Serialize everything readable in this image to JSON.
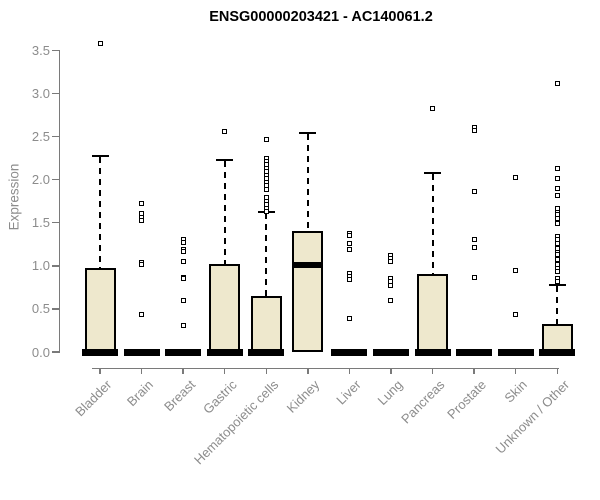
{
  "chart_data": {
    "type": "boxplot",
    "title": "ENSG00000203421 - AC140061.2",
    "ylabel": "Expression",
    "xlabel": "",
    "ylim": [
      0,
      3.5
    ],
    "yticks": [
      "0.0",
      "0.5",
      "1.0",
      "1.5",
      "2.0",
      "2.5",
      "3.0",
      "3.5"
    ],
    "grid": false,
    "legend": "none",
    "box_fill_color": "#EEE8CD",
    "axis_color": "#7a7a7a",
    "label_color": "#8c8c8c",
    "categories": [
      "Bladder",
      "Brain",
      "Breast",
      "Gastric",
      "Hematopoietic cells",
      "Kidney",
      "Liver",
      "Lung",
      "Pancreas",
      "Prostate",
      "Skin",
      "Unknown / Other"
    ],
    "boxes": [
      {
        "category": "Bladder",
        "q1": 0,
        "median": 0,
        "q3": 0.98,
        "whisker_low": 0,
        "whisker_high": 2.27,
        "outliers": [
          3.58
        ]
      },
      {
        "category": "Brain",
        "q1": 0,
        "median": 0,
        "q3": 0,
        "whisker_low": 0,
        "whisker_high": 0,
        "outliers": [
          1.72,
          1.61,
          1.56,
          1.53,
          1.04,
          1.02,
          0.43
        ]
      },
      {
        "category": "Breast",
        "q1": 0,
        "median": 0,
        "q3": 0,
        "whisker_low": 0,
        "whisker_high": 0,
        "outliers": [
          1.31,
          1.27,
          1.19,
          1.17,
          1.05,
          0.87,
          0.85,
          0.6,
          0.31
        ]
      },
      {
        "category": "Gastric",
        "q1": 0,
        "median": 0,
        "q3": 1.02,
        "whisker_low": 0,
        "whisker_high": 2.23,
        "outliers": [
          2.56
        ]
      },
      {
        "category": "Hematopoietic cells",
        "q1": 0,
        "median": 0,
        "q3": 0.65,
        "whisker_low": 0,
        "whisker_high": 1.62,
        "outliers": [
          2.46,
          2.25,
          2.21,
          2.17,
          2.13,
          2.09,
          2.05,
          2.01,
          1.97,
          1.93,
          1.88,
          1.79,
          1.75,
          1.71,
          1.67,
          1.63
        ]
      },
      {
        "category": "Kidney",
        "q1": 0,
        "median": 1.01,
        "q3": 1.4,
        "whisker_low": 0,
        "whisker_high": 2.54,
        "outliers": []
      },
      {
        "category": "Liver",
        "q1": 0,
        "median": 0,
        "q3": 0,
        "whisker_low": 0,
        "whisker_high": 0,
        "outliers": [
          1.37,
          1.35,
          1.26,
          1.19,
          0.91,
          0.88,
          0.84,
          0.39
        ]
      },
      {
        "category": "Lung",
        "q1": 0,
        "median": 0,
        "q3": 0,
        "whisker_low": 0,
        "whisker_high": 0,
        "outliers": [
          1.12,
          1.09,
          1.05,
          0.85,
          0.82,
          0.77,
          0.6
        ]
      },
      {
        "category": "Pancreas",
        "q1": 0,
        "median": 0,
        "q3": 0.9,
        "whisker_low": 0,
        "whisker_high": 2.08,
        "outliers": [
          2.82
        ]
      },
      {
        "category": "Prostate",
        "q1": 0,
        "median": 0,
        "q3": 0,
        "whisker_low": 0,
        "whisker_high": 0,
        "outliers": [
          2.61,
          2.57,
          1.86,
          1.31,
          1.21,
          0.86
        ]
      },
      {
        "category": "Skin",
        "q1": 0,
        "median": 0,
        "q3": 0,
        "whisker_low": 0,
        "whisker_high": 0,
        "outliers": [
          2.03,
          0.95,
          0.44
        ]
      },
      {
        "category": "Unknown / Other",
        "q1": 0,
        "median": 0,
        "q3": 0.32,
        "whisker_low": 0,
        "whisker_high": 0.78,
        "outliers": [
          3.11,
          2.13,
          2.01,
          1.9,
          1.82,
          1.67,
          1.62,
          1.59,
          1.55,
          1.49,
          1.34,
          1.3,
          1.26,
          1.2,
          1.16,
          1.13,
          1.07,
          1.01,
          0.97,
          0.93,
          0.85,
          0.82
        ]
      }
    ]
  }
}
